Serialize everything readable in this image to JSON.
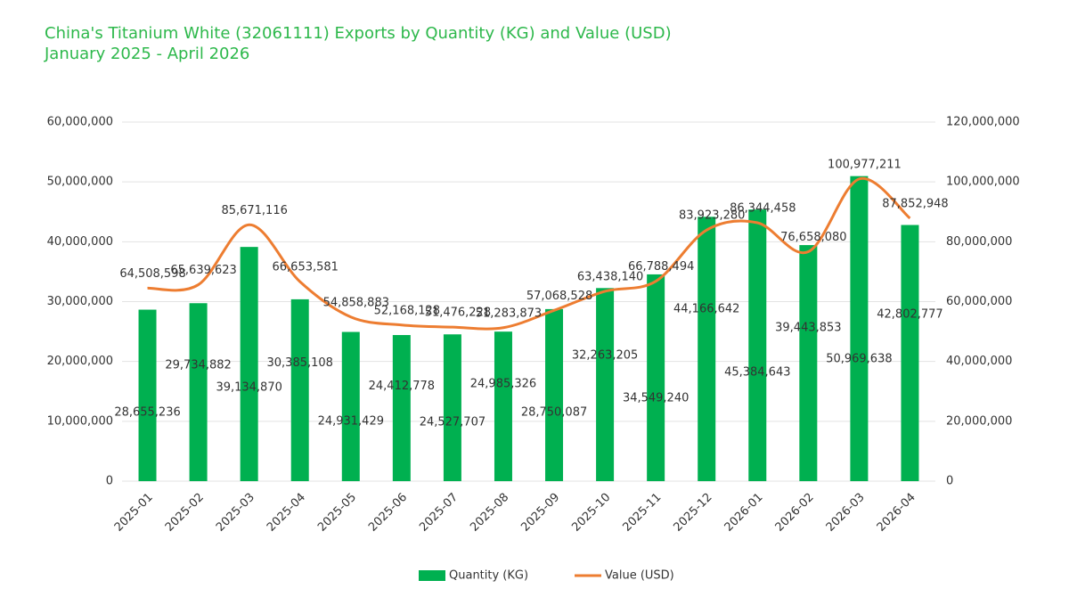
{
  "chart_data": {
    "type": "combo",
    "title": "China's Titanium White (32061111) Exports by Quantity (KG) and Value (USD)",
    "subtitle": "January 2025 - April 2026",
    "categories": [
      "2025-01",
      "2025-02",
      "2025-03",
      "2025-04",
      "2025-05",
      "2025-06",
      "2025-07",
      "2025-08",
      "2025-09",
      "2025-10",
      "2025-11",
      "2025-12",
      "2026-01",
      "2026-02",
      "2026-03",
      "2026-04"
    ],
    "series": [
      {
        "name": "Quantity (KG)",
        "type": "bar",
        "color": "#00b050",
        "values": [
          28655236,
          29734882,
          39134870,
          30385108,
          24931429,
          24412778,
          24527707,
          24985326,
          28750087,
          32263205,
          34549240,
          44166642,
          45384643,
          39443853,
          50969638,
          42802777
        ],
        "value_labels": [
          "28,655,236",
          "29,734,882",
          "39,134,870",
          "30,385,108",
          "24,931,429",
          "24,412,778",
          "24,527,707",
          "24,985,326",
          "28,750,087",
          "32,263,205",
          "34,549,240",
          "44,166,642",
          "45,384,643",
          "39,443,853",
          "50,969,638",
          "42,802,777"
        ]
      },
      {
        "name": "Value (USD)",
        "type": "line",
        "axis": "y2",
        "color": "#ed7d31",
        "values": [
          64508598,
          65639623,
          85671116,
          66653581,
          54858883,
          52168128,
          51476228,
          51283873,
          57068528,
          63438140,
          66788494,
          83923280,
          86344458,
          76658080,
          100977211,
          87852948
        ],
        "value_labels": [
          "64,508,598",
          "65,639,623",
          "85,671,116",
          "66,653,581",
          "54,858,883",
          "52,168,128",
          "51,476,228",
          "51,283,873",
          "57,068,528",
          "63,438,140",
          "66,788,494",
          "83,923,280",
          "86,344,458",
          "76,658,080",
          "100,977,211",
          "87,852,948"
        ]
      }
    ],
    "ylim": [
      0,
      60000000
    ],
    "yticks": [
      0,
      {
        "value": 10000000,
        "label": "10,000,000"
      },
      {
        "value": 20000000,
        "label": "20,000,000"
      },
      {
        "value": 30000000,
        "label": "30,000,000"
      },
      {
        "value": 40000000,
        "label": "40,000,000"
      },
      {
        "value": 50000000,
        "label": "50,000,000"
      },
      {
        "value": 60000000,
        "label": "60,000,000"
      }
    ],
    "y2lim": [
      0,
      120000000
    ],
    "y2ticks": [
      0,
      {
        "value": 20000000,
        "label": "20,000,000"
      },
      {
        "value": 40000000,
        "label": "40,000,000"
      },
      {
        "value": 60000000,
        "label": "60,000,000"
      },
      {
        "value": 80000000,
        "label": "80,000,000"
      },
      {
        "value": 100000000,
        "label": "100,000,000"
      },
      {
        "value": 120000000,
        "label": "120,000,000"
      }
    ],
    "grid": true,
    "legend": "bottom"
  }
}
